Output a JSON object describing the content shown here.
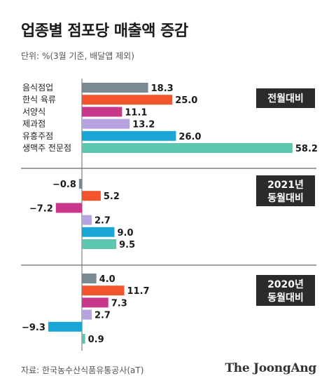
{
  "title": "업종별 점포당 매출액 증감",
  "unit_note": "단위: %(3월 기준, 배달앱 제외)",
  "source": "자료: 한국농수산식품유통공사(aT)",
  "logo": "The JoongAng",
  "colors": [
    "#7a8a94",
    "#f2552c",
    "#c8378a",
    "#b7a3df",
    "#1aa7d6",
    "#5cc6b0"
  ],
  "chart_data": {
    "type": "bar",
    "orientation": "horizontal",
    "categories": [
      "음식점업",
      "한식 육류",
      "서양식",
      "제과점",
      "유흥주점",
      "생맥주 전문점"
    ],
    "panels": [
      {
        "label": "전월대비",
        "values": [
          18.3,
          25.0,
          11.1,
          13.2,
          26.0,
          58.2
        ],
        "value_labels": [
          "18.3",
          "25.0",
          "11.1",
          "13.2",
          "26.0",
          "58.2"
        ]
      },
      {
        "label": "2021년 동월대비",
        "values": [
          -0.8,
          5.2,
          -7.2,
          2.7,
          9.0,
          9.5
        ],
        "value_labels": [
          "−0.8",
          "5.2",
          "−7.2",
          "2.7",
          "9.0",
          "9.5"
        ]
      },
      {
        "label": "2020년 동월대비",
        "values": [
          4.0,
          11.7,
          7.3,
          2.7,
          -9.3,
          0.9
        ],
        "value_labels": [
          "4.0",
          "11.7",
          "7.3",
          "2.7",
          "−9.3",
          "0.9"
        ]
      }
    ]
  }
}
